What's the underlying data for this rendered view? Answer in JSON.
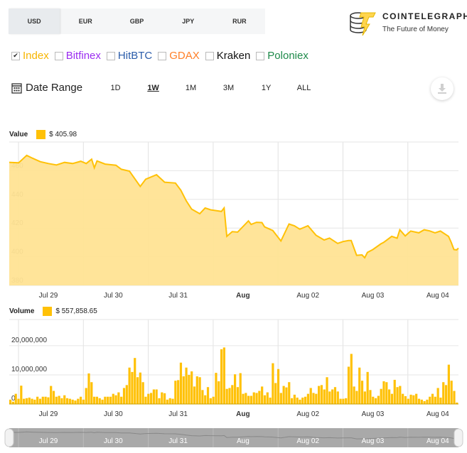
{
  "currencies": [
    {
      "label": "USD",
      "active": true
    },
    {
      "label": "EUR"
    },
    {
      "label": "GBP"
    },
    {
      "label": "JPY"
    },
    {
      "label": "RUR"
    }
  ],
  "logo": {
    "name": "COINTELEGRAPH",
    "tagline": "The Future of Money"
  },
  "exchanges": [
    {
      "label": "Index",
      "checked": true,
      "color": "#f7b500"
    },
    {
      "label": "Bitfinex",
      "checked": false,
      "color": "#9b2cf0"
    },
    {
      "label": "HitBTC",
      "checked": false,
      "color": "#2a5caa"
    },
    {
      "label": "GDAX",
      "checked": false,
      "color": "#ff7f27"
    },
    {
      "label": "Kraken",
      "checked": false,
      "color": "#111111"
    },
    {
      "label": "Poloniex",
      "checked": false,
      "color": "#1e8a4a"
    }
  ],
  "date_range": {
    "label": "Date Range",
    "icon": "calendar-icon",
    "options": [
      "1D",
      "1W",
      "1M",
      "3M",
      "1Y",
      "ALL"
    ],
    "selected": "1W"
  },
  "download_icon": "download-icon",
  "chart_data": [
    {
      "type": "area",
      "title": "Value",
      "legend_value": "$ 405.98",
      "color": "#ffc107",
      "ylim": [
        380,
        480
      ],
      "yticks": [
        "380",
        "400",
        "420",
        "440",
        "460"
      ],
      "xticks": [
        "Jul 29",
        "Jul 30",
        "Jul 31",
        "Aug",
        "Aug 02",
        "Aug 03",
        "Aug 04"
      ],
      "points": [
        [
          "07-28 10:00",
          465.8
        ],
        [
          "07-28 13:00",
          465.5
        ],
        [
          "07-28 16:00",
          470.7
        ],
        [
          "07-28 18:00",
          468.8
        ],
        [
          "07-28 21:00",
          466.3
        ],
        [
          "07-29 00:00",
          465
        ],
        [
          "07-29 03:00",
          464
        ],
        [
          "07-29 06:00",
          465.8
        ],
        [
          "07-29 09:00",
          465
        ],
        [
          "07-29 12:00",
          466.6
        ],
        [
          "07-29 14:00",
          465
        ],
        [
          "07-29 16:00",
          468
        ],
        [
          "07-29 17:00",
          462
        ],
        [
          "07-29 18:00",
          466.8
        ],
        [
          "07-29 21:00",
          464.6
        ],
        [
          "07-30 01:00",
          463.8
        ],
        [
          "07-30 03:00",
          461
        ],
        [
          "07-30 06:00",
          459.7
        ],
        [
          "07-30 10:00",
          449
        ],
        [
          "07-30 12:00",
          454
        ],
        [
          "07-30 16:00",
          457.2
        ],
        [
          "07-30 19:00",
          452
        ],
        [
          "07-30 23:00",
          451.4
        ],
        [
          "07-31 01:00",
          446.4
        ],
        [
          "07-31 03:00",
          439
        ],
        [
          "07-31 05:00",
          433.2
        ],
        [
          "07-31 08:00",
          430
        ],
        [
          "07-31 10:00",
          434
        ],
        [
          "07-31 12:00",
          432.7
        ],
        [
          "07-31 16:00",
          431.6
        ],
        [
          "07-31 17:00",
          434
        ],
        [
          "07-31 18:00",
          414.2
        ],
        [
          "07-31 20:00",
          417.5
        ],
        [
          "07-31 22:00",
          417.2
        ],
        [
          "08-01 02:00",
          425
        ],
        [
          "08-01 03:00",
          422.5
        ],
        [
          "08-01 05:00",
          424
        ],
        [
          "08-01 07:00",
          423.8
        ],
        [
          "08-01 08:00",
          420.8
        ],
        [
          "08-01 11:00",
          418.3
        ],
        [
          "08-01 14:00",
          411
        ],
        [
          "08-01 17:00",
          422.8
        ],
        [
          "08-01 19:00",
          421.6
        ],
        [
          "08-01 21:00",
          419.2
        ],
        [
          "08-02 00:00",
          421.6
        ],
        [
          "08-02 03:00",
          415
        ],
        [
          "08-02 06:00",
          411.7
        ],
        [
          "08-02 08:00",
          413
        ],
        [
          "08-02 11:00",
          409.3
        ],
        [
          "08-02 13:00",
          410.6
        ],
        [
          "08-02 15:00",
          411.3
        ],
        [
          "08-02 16:00",
          411.3
        ],
        [
          "08-02 18:00",
          401
        ],
        [
          "08-02 20:00",
          401.3
        ],
        [
          "08-02 21:00",
          399.3
        ],
        [
          "08-02 22:00",
          403
        ],
        [
          "08-03 00:00",
          405
        ],
        [
          "08-03 03:00",
          409
        ],
        [
          "08-03 04:00",
          410
        ],
        [
          "08-03 07:00",
          414.2
        ],
        [
          "08-03 09:00",
          412.9
        ],
        [
          "08-03 10:00",
          418.8
        ],
        [
          "08-03 12:00",
          414.5
        ],
        [
          "08-03 14:00",
          417.9
        ],
        [
          "08-03 17:00",
          416.7
        ],
        [
          "08-03 19:00",
          418.8
        ],
        [
          "08-03 21:00",
          418
        ],
        [
          "08-03 23:00",
          416.7
        ],
        [
          "08-04 01:00",
          417.9
        ],
        [
          "08-04 04:00",
          414.2
        ],
        [
          "08-04 05:00",
          410
        ],
        [
          "08-04 06:00",
          405
        ],
        [
          "08-04 07:00",
          404.8
        ],
        [
          "08-04 08:00",
          405.98
        ]
      ]
    },
    {
      "type": "bar",
      "title": "Volume",
      "legend_value": "$ 557,858.65",
      "color": "#ffc107",
      "ylim": [
        0,
        29000000
      ],
      "yticks": [
        "0",
        "10,000,000",
        "20,000,000"
      ],
      "xticks": [
        "Jul 29",
        "Jul 30",
        "Jul 31",
        "Aug",
        "Aug 02",
        "Aug 03",
        "Aug 04"
      ],
      "values_millions": [
        1.5,
        0.8,
        3.5,
        1.8,
        6.3,
        1.8,
        2,
        2.2,
        1.8,
        1.5,
        2.5,
        1.8,
        2.5,
        2.5,
        2.3,
        6.2,
        4.5,
        2.5,
        2.8,
        2,
        3,
        2,
        1.8,
        1.5,
        1.2,
        1.8,
        2.5,
        1.5,
        5.5,
        10.5,
        7.5,
        2.5,
        2.5,
        2,
        1.5,
        2.5,
        2.5,
        2.5,
        3.5,
        3,
        4,
        2.5,
        5.5,
        6.5,
        12.5,
        11,
        15.8,
        9.2,
        10.8,
        7.5,
        2.5,
        3.5,
        3.8,
        5,
        5,
        2,
        4,
        3.7,
        1.5,
        2,
        1.8,
        8,
        8.2,
        14.2,
        9.5,
        12.5,
        10,
        11.2,
        6,
        9.5,
        9.2,
        4.8,
        3,
        5.8,
        2,
        2.5,
        10.7,
        7.8,
        18.8,
        19.4,
        5.2,
        5.5,
        6.5,
        10.2,
        5.8,
        10.6,
        3.5,
        3.8,
        2.8,
        2.8,
        4,
        3.8,
        4.5,
        6,
        3,
        4,
        2.2,
        14,
        7.2,
        12,
        3.8,
        6.2,
        5.7,
        7.5,
        2,
        3.2,
        2.2,
        1.5,
        2.2,
        2.5,
        3.5,
        5.5,
        3.8,
        3.5,
        6.2,
        6.5,
        5,
        9.2,
        4.3,
        5,
        5.8,
        4.3,
        1.8,
        1.8,
        2,
        12.8,
        17.2,
        6,
        4.5,
        12.5,
        8,
        4.3,
        11,
        4.8,
        2.5,
        2,
        2.8,
        5.2,
        7.8,
        7.5,
        5,
        3.5,
        8.3,
        5.8,
        6.2,
        3.5,
        2.7,
        1.8,
        3.2,
        3,
        3.5,
        1.8,
        1.5,
        1,
        1.5,
        2.5,
        3.5,
        2.5,
        5.5,
        2.2,
        7.5,
        6.5,
        13.5,
        8,
        4.5,
        0.5
      ]
    }
  ],
  "navigator": {
    "xticks": [
      "Jul 29",
      "Jul 30",
      "Jul 31",
      "Aug",
      "Aug 02",
      "Aug 03",
      "Aug 04"
    ]
  }
}
